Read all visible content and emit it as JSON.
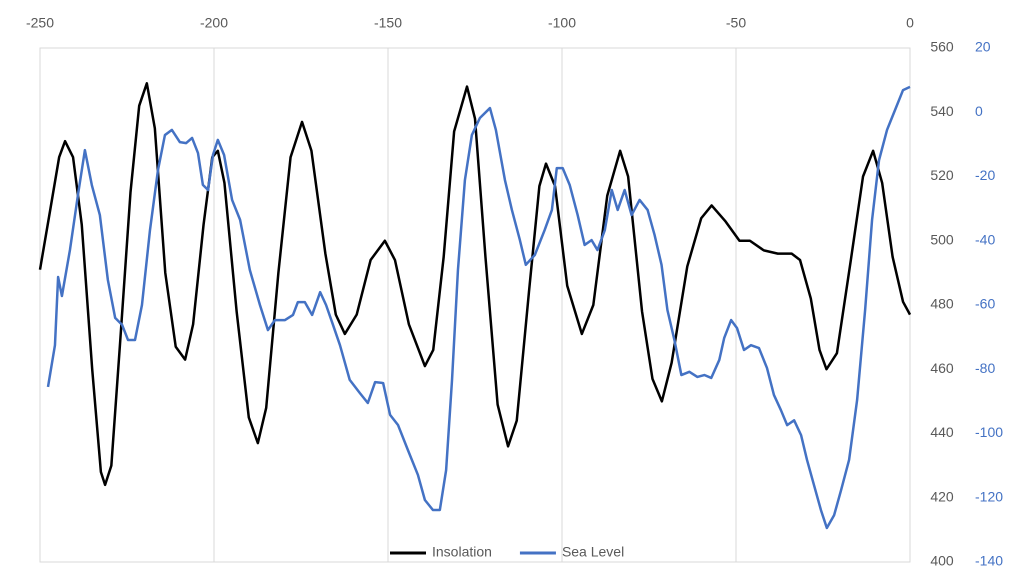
{
  "chart_data": {
    "type": "line",
    "xlim": [
      -250,
      0
    ],
    "xticks": [
      -250,
      -200,
      -150,
      -100,
      -50,
      0
    ],
    "ylim": [
      400,
      560
    ],
    "yticks": [
      400,
      420,
      440,
      460,
      480,
      500,
      520,
      540,
      560
    ],
    "y2lim": [
      -140,
      20
    ],
    "y2ticks": [
      -140,
      -120,
      -100,
      -80,
      -60,
      -40,
      -20,
      0,
      20
    ],
    "grid": true,
    "legend": "bottom",
    "series": [
      {
        "name": "Insolation",
        "color": "#000000",
        "x": [
          -250,
          -247,
          -244.5,
          -242.8,
          -240.5,
          -238,
          -235,
          -232.5,
          -231.3,
          -229.5,
          -227,
          -224,
          -221.5,
          -219.3,
          -217,
          -214,
          -211,
          -208.3,
          -206,
          -203,
          -200.5,
          -198.9,
          -197,
          -193.5,
          -190,
          -187.4,
          -185,
          -181.5,
          -178,
          -174.7,
          -172,
          -168,
          -165,
          -162.4,
          -159,
          -155,
          -150.9,
          -148,
          -144,
          -139.4,
          -137,
          -134,
          -131,
          -127.3,
          -125,
          -122,
          -118.5,
          -115.5,
          -113,
          -109.5,
          -106.5,
          -104.6,
          -102,
          -98.5,
          -94.3,
          -91,
          -87,
          -83.3,
          -81,
          -77,
          -74,
          -71.3,
          -68.5,
          -64,
          -60,
          -57,
          -53,
          -49,
          -46,
          -42,
          -38,
          -34,
          -31.6,
          -28.5,
          -26,
          -24,
          -21,
          -17,
          -13.5,
          -10.6,
          -8,
          -5,
          -2,
          0
        ],
        "values": [
          491,
          510,
          526,
          531,
          526,
          505,
          460,
          428,
          424,
          430,
          468,
          515,
          542,
          549,
          535,
          490,
          467,
          463,
          474,
          505,
          526,
          528,
          518,
          478,
          445,
          437,
          448,
          490,
          526,
          537,
          528,
          496,
          477,
          471,
          477,
          494,
          500,
          494,
          474,
          461,
          466,
          495,
          534,
          548,
          538,
          495,
          449,
          436,
          444,
          484,
          517,
          524,
          517,
          486,
          471,
          480,
          514,
          528,
          520,
          478,
          457,
          450,
          462,
          492,
          507,
          511,
          506,
          500,
          500,
          497,
          496,
          496,
          494,
          482,
          466,
          460,
          465,
          494,
          520,
          528,
          518,
          495,
          481,
          477
        ]
      },
      {
        "name": "Sea Level",
        "color": "#4472c4",
        "axis": "y2",
        "x": [
          -247.7,
          -245.7,
          -244.8,
          -243.7,
          -241.4,
          -239.1,
          -237.1,
          -235.1,
          -232.8,
          -230.5,
          -228.4,
          -226.4,
          -224.7,
          -222.7,
          -220.7,
          -218.4,
          -216.1,
          -214.1,
          -212.1,
          -209.8,
          -208,
          -206.3,
          -204.6,
          -203.2,
          -201.7,
          -200.3,
          -198.9,
          -197.1,
          -194.8,
          -192.5,
          -189.7,
          -186.8,
          -184.5,
          -182.5,
          -179.6,
          -177.3,
          -175.9,
          -173.9,
          -171.8,
          -169.5,
          -167.8,
          -165.8,
          -163.8,
          -161,
          -158.1,
          -155.8,
          -153.7,
          -151.4,
          -149.4,
          -147.1,
          -144.3,
          -141.4,
          -139.4,
          -137.1,
          -135.1,
          -133.3,
          -131.6,
          -129.9,
          -127.9,
          -125.9,
          -123.6,
          -120.7,
          -119,
          -116.4,
          -114.4,
          -112.1,
          -110.4,
          -107.8,
          -105,
          -102.9,
          -101.5,
          -99.8,
          -97.8,
          -95.5,
          -93.5,
          -91.5,
          -89.8,
          -87.7,
          -85.7,
          -84,
          -82,
          -80,
          -77.7,
          -75.4,
          -73.4,
          -71.4,
          -69.7,
          -67.7,
          -65.7,
          -63.4,
          -61.1,
          -59.1,
          -57.1,
          -54.8,
          -53.4,
          -51.4,
          -49.7,
          -47.7,
          -45.7,
          -43.4,
          -41.1,
          -39.1,
          -37.1,
          -35.3,
          -33.3,
          -31.3,
          -29.6,
          -27.6,
          -25.6,
          -23.9,
          -21.8,
          -19.8,
          -17.5,
          -15.2,
          -12.9,
          -10.9,
          -8.9,
          -6.6,
          -4.3,
          -2,
          0
        ],
        "values": [
          -85.5,
          -72.5,
          -51.3,
          -57.2,
          -42.9,
          -25.8,
          -11.8,
          -22.7,
          -32,
          -52.2,
          -64,
          -66.2,
          -70.9,
          -70.9,
          -60,
          -36.7,
          -18,
          -7.1,
          -5.5,
          -9.3,
          -9.6,
          -8,
          -12.7,
          -22.6,
          -24.2,
          -13.3,
          -8.6,
          -13.3,
          -27.3,
          -33.5,
          -49.1,
          -60,
          -67.8,
          -64.7,
          -64.7,
          -63.1,
          -59.1,
          -59.1,
          -63.1,
          -56,
          -60,
          -66.2,
          -72.5,
          -83.3,
          -87.4,
          -90.5,
          -84,
          -84.3,
          -94.2,
          -97.4,
          -105.1,
          -112.9,
          -120.7,
          -123.8,
          -123.8,
          -111.4,
          -83.3,
          -49.1,
          -21.1,
          -7.1,
          -1.8,
          1.3,
          -5.5,
          -21.1,
          -30.4,
          -39.8,
          -47.5,
          -44.4,
          -36.7,
          -30.4,
          -17.4,
          -17.4,
          -22.6,
          -32,
          -41.3,
          -39.8,
          -42.9,
          -36.7,
          -24.2,
          -30.4,
          -24.2,
          -32,
          -27.3,
          -30.4,
          -38.2,
          -47.5,
          -61.6,
          -70.9,
          -81.8,
          -80.8,
          -82.4,
          -81.8,
          -82.7,
          -77.1,
          -70.3,
          -64.7,
          -67.2,
          -74,
          -72.5,
          -73.4,
          -79.6,
          -88,
          -92.7,
          -97.4,
          -95.9,
          -100.5,
          -108.2,
          -116,
          -123.8,
          -129.4,
          -125.4,
          -117.6,
          -108.2,
          -89.6,
          -61.6,
          -33.5,
          -14.9,
          -5.5,
          0.7,
          6.9,
          7.9
        ]
      }
    ]
  }
}
